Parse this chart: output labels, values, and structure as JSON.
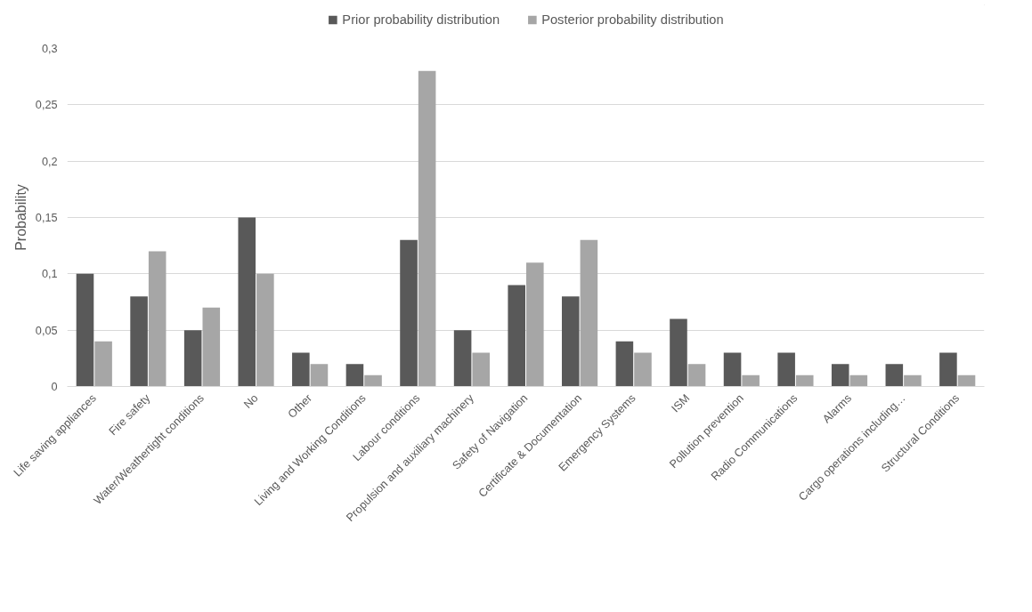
{
  "chart_data": {
    "type": "bar",
    "ylabel": "Probability",
    "categories": [
      "Life saving appliances",
      "Fire safety",
      "Water/Weathertight conditions",
      "No",
      "Other",
      "Living and Working Conditions",
      "Labour conditions",
      "Propulsion and auxiliary machinery",
      "Safety of Navigation",
      "Certificate & Documentation",
      "Emergency Systems",
      "ISM",
      "Pollution prevention",
      "Radio Communications",
      "Alarms",
      "Cargo operations including…",
      "Structural Conditions"
    ],
    "series": [
      {
        "name": "Prior probability distribution",
        "color": "#595959",
        "values": [
          0.1,
          0.08,
          0.05,
          0.15,
          0.03,
          0.02,
          0.13,
          0.05,
          0.09,
          0.08,
          0.04,
          0.06,
          0.03,
          0.03,
          0.02,
          0.02,
          0.03
        ]
      },
      {
        "name": "Posterior probability distribution",
        "color": "#a6a6a6",
        "values": [
          0.04,
          0.12,
          0.07,
          0.1,
          0.02,
          0.01,
          0.28,
          0.03,
          0.11,
          0.13,
          0.03,
          0.02,
          0.01,
          0.01,
          0.01,
          0.01,
          0.01
        ]
      }
    ],
    "ylim": [
      0,
      0.3
    ],
    "yticks": [
      {
        "value": 0,
        "label": "0"
      },
      {
        "value": 0.05,
        "label": "0,05"
      },
      {
        "value": 0.1,
        "label": "0,1"
      },
      {
        "value": 0.15,
        "label": "0,15"
      },
      {
        "value": 0.2,
        "label": "0,2"
      },
      {
        "value": 0.25,
        "label": "0,25"
      },
      {
        "value": 0.3,
        "label": "0,3"
      }
    ],
    "grid": "y",
    "legend": "top"
  }
}
